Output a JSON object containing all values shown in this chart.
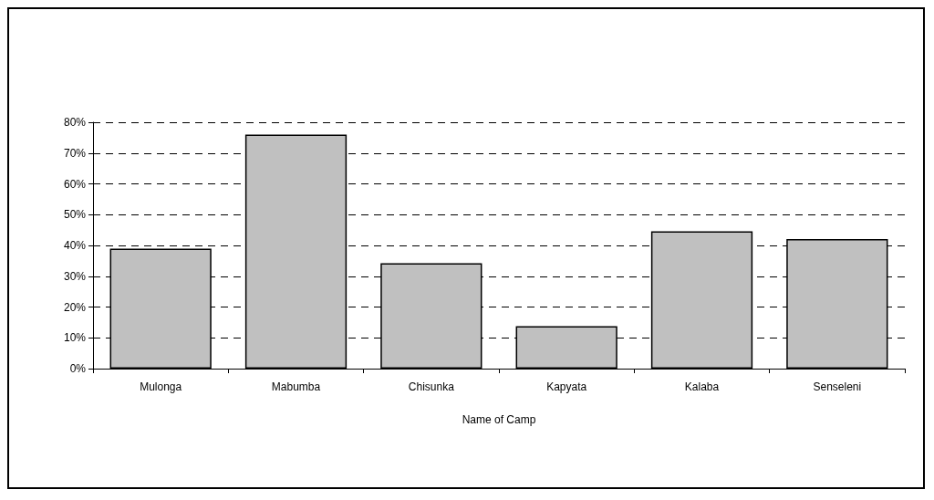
{
  "chart_data": {
    "type": "bar",
    "xlabel": "Name of Camp",
    "categories": [
      "Mulonga",
      "Mabumba",
      "Chisunka",
      "Kapyata",
      "Kalaba",
      "Senseleni"
    ],
    "values": [
      39,
      76,
      34.2,
      13.8,
      44.6,
      42.1
    ],
    "color": "#c0c0c0",
    "ylim": [
      0,
      80
    ],
    "yticks": [
      {
        "value": 0,
        "label": "0%"
      },
      {
        "value": 10,
        "label": "10%"
      },
      {
        "value": 20,
        "label": "20%"
      },
      {
        "value": 30,
        "label": "30%"
      },
      {
        "value": 40,
        "label": "40%"
      },
      {
        "value": 50,
        "label": "50%"
      },
      {
        "value": 60,
        "label": "60%"
      },
      {
        "value": 70,
        "label": "70%"
      },
      {
        "value": 80,
        "label": "80%"
      }
    ],
    "grid": "y"
  }
}
